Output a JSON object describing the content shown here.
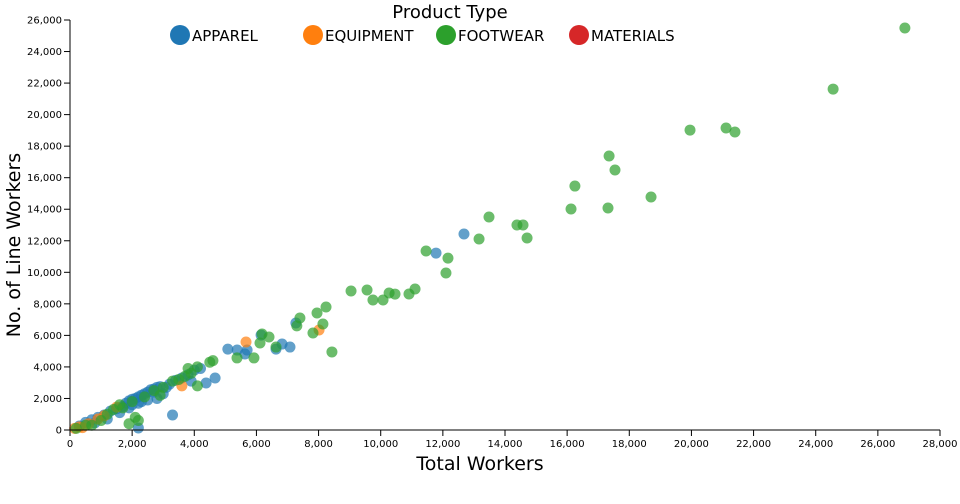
{
  "chart_data": {
    "type": "scatter",
    "xlabel": "Total Workers",
    "ylabel": "No. of Line Workers",
    "xlim": [
      0,
      28000
    ],
    "ylim": [
      0,
      26000
    ],
    "x_ticks": [
      "0",
      "2,000",
      "4,000",
      "6,000",
      "8,000",
      "10,000",
      "12,000",
      "14,000",
      "16,000",
      "18,000",
      "20,000",
      "22,000",
      "24,000",
      "26,000",
      "28,000"
    ],
    "y_ticks": [
      "0",
      "2,000",
      "4,000",
      "6,000",
      "8,000",
      "10,000",
      "12,000",
      "14,000",
      "16,000",
      "18,000",
      "20,000",
      "22,000",
      "24,000",
      "26,000"
    ],
    "grid": false,
    "legend": {
      "title": "Product Type",
      "position": "top-center"
    },
    "series": [
      {
        "name": "APPAREL",
        "color": "#1f77b4",
        "points": [
          [
            300,
            250
          ],
          [
            500,
            480
          ],
          [
            700,
            650
          ],
          [
            800,
            450
          ],
          [
            900,
            800
          ],
          [
            1100,
            950
          ],
          [
            1200,
            700
          ],
          [
            1300,
            1200
          ],
          [
            1500,
            1350
          ],
          [
            1600,
            1100
          ],
          [
            1700,
            1500
          ],
          [
            1800,
            1700
          ],
          [
            1900,
            1850
          ],
          [
            1900,
            1400
          ],
          [
            2000,
            1950
          ],
          [
            2000,
            1600
          ],
          [
            2100,
            2000
          ],
          [
            2200,
            2100
          ],
          [
            2200,
            1700
          ],
          [
            2200,
            130
          ],
          [
            2300,
            2200
          ],
          [
            2300,
            1800
          ],
          [
            2400,
            2300
          ],
          [
            2500,
            2400
          ],
          [
            2500,
            1900
          ],
          [
            2600,
            2550
          ],
          [
            2700,
            2600
          ],
          [
            2700,
            2400
          ],
          [
            2800,
            2700
          ],
          [
            2800,
            2000
          ],
          [
            2900,
            2750
          ],
          [
            3000,
            2300
          ],
          [
            3100,
            2700
          ],
          [
            3200,
            2900
          ],
          [
            3300,
            950
          ],
          [
            3400,
            3150
          ],
          [
            3600,
            3300
          ],
          [
            3800,
            3500
          ],
          [
            3900,
            3100
          ],
          [
            4000,
            3800
          ],
          [
            4200,
            3900
          ],
          [
            4380,
            2980
          ],
          [
            4670,
            3300
          ],
          [
            5080,
            5130
          ],
          [
            5380,
            5070
          ],
          [
            5630,
            4820
          ],
          [
            5700,
            5070
          ],
          [
            6150,
            6020
          ],
          [
            6630,
            5130
          ],
          [
            6825,
            5450
          ],
          [
            7080,
            5260
          ],
          [
            7270,
            6785
          ],
          [
            11780,
            11220
          ],
          [
            12680,
            12430
          ]
        ]
      },
      {
        "name": "EQUIPMENT",
        "color": "#ff7f0e",
        "points": [
          [
            150,
            100
          ],
          [
            300,
            200
          ],
          [
            400,
            150
          ],
          [
            600,
            400
          ],
          [
            900,
            700
          ],
          [
            1100,
            900
          ],
          [
            1500,
            1450
          ],
          [
            3600,
            2800
          ],
          [
            5665,
            5580
          ],
          [
            8015,
            6340
          ]
        ]
      },
      {
        "name": "FOOTWEAR",
        "color": "#2ca02c",
        "points": [
          [
            200,
            100
          ],
          [
            500,
            300
          ],
          [
            700,
            300
          ],
          [
            1000,
            600
          ],
          [
            1200,
            1000
          ],
          [
            1400,
            1300
          ],
          [
            1600,
            1600
          ],
          [
            1700,
            1400
          ],
          [
            1900,
            400
          ],
          [
            2000,
            1800
          ],
          [
            2100,
            800
          ],
          [
            2200,
            600
          ],
          [
            2400,
            2100
          ],
          [
            2700,
            2500
          ],
          [
            2900,
            2200
          ],
          [
            3000,
            2700
          ],
          [
            3300,
            3100
          ],
          [
            3500,
            3200
          ],
          [
            3700,
            3400
          ],
          [
            3800,
            3900
          ],
          [
            3900,
            3600
          ],
          [
            4100,
            2800
          ],
          [
            4100,
            4000
          ],
          [
            4500,
            4300
          ],
          [
            4600,
            4400
          ],
          [
            5375,
            4570
          ],
          [
            5920,
            4570
          ],
          [
            6115,
            5520
          ],
          [
            6180,
            6090
          ],
          [
            6405,
            5900
          ],
          [
            6630,
            5260
          ],
          [
            7300,
            6600
          ],
          [
            7400,
            7100
          ],
          [
            7820,
            6150
          ],
          [
            7950,
            7420
          ],
          [
            8140,
            6720
          ],
          [
            8240,
            7800
          ],
          [
            8430,
            4950
          ],
          [
            9045,
            8815
          ],
          [
            9560,
            8880
          ],
          [
            9750,
            8245
          ],
          [
            10075,
            8245
          ],
          [
            10270,
            8690
          ],
          [
            10460,
            8620
          ],
          [
            10910,
            8625
          ],
          [
            11105,
            8940
          ],
          [
            11460,
            11350
          ],
          [
            12100,
            9955
          ],
          [
            12165,
            10900
          ],
          [
            13165,
            12110
          ],
          [
            13485,
            13510
          ],
          [
            14385,
            13000
          ],
          [
            14580,
            13000
          ],
          [
            14710,
            12175
          ],
          [
            16125,
            14015
          ],
          [
            16250,
            15470
          ],
          [
            17315,
            14080
          ],
          [
            17350,
            17375
          ],
          [
            17540,
            16490
          ],
          [
            18700,
            14775
          ],
          [
            19955,
            19020
          ],
          [
            21115,
            19150
          ],
          [
            21400,
            18900
          ],
          [
            24560,
            21620
          ],
          [
            26870,
            25490
          ]
        ]
      },
      {
        "name": "MATERIALS",
        "color": "#d62728",
        "points": []
      }
    ]
  }
}
